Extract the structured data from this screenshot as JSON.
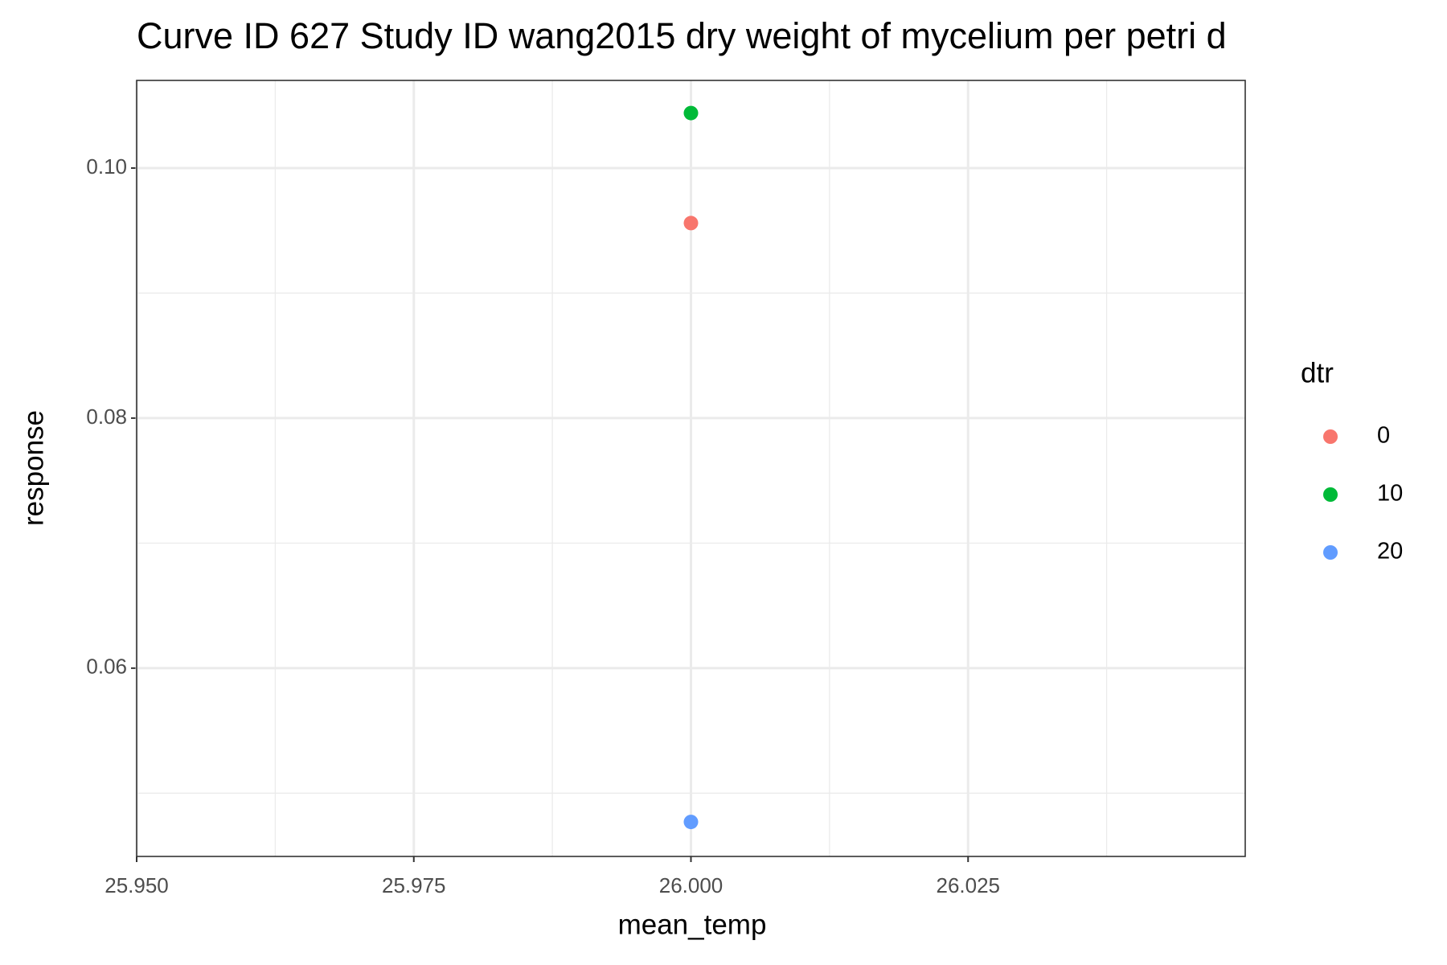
{
  "chart_data": {
    "type": "scatter",
    "title": "Curve ID 627 Study ID wang2015 dry weight of mycelium per petri d",
    "x_label": "mean_temp",
    "y_label": "response",
    "legend_title": "dtr",
    "x": [
      26.0
    ],
    "series": [
      {
        "name": "0",
        "color": "#f8766d",
        "values": [
          0.0956
        ]
      },
      {
        "name": "10",
        "color": "#00ba38",
        "values": [
          0.1044
        ]
      },
      {
        "name": "20",
        "color": "#619cff",
        "values": [
          0.0477
        ]
      }
    ],
    "xlim": [
      25.95,
      26.05
    ],
    "xticks": [
      {
        "value": 25.95,
        "label": "25.950"
      },
      {
        "value": 25.975,
        "label": "25.975"
      },
      {
        "value": 26.0,
        "label": "26.000"
      },
      {
        "value": 26.025,
        "label": "26.025"
      }
    ],
    "ylim": [
      0.04494,
      0.10701
    ],
    "yticks": [
      {
        "value": 0.06,
        "label": "0.06"
      },
      {
        "value": 0.08,
        "label": "0.08"
      },
      {
        "value": 0.1,
        "label": "0.10"
      }
    ],
    "grid": true,
    "legend_position": "right"
  }
}
